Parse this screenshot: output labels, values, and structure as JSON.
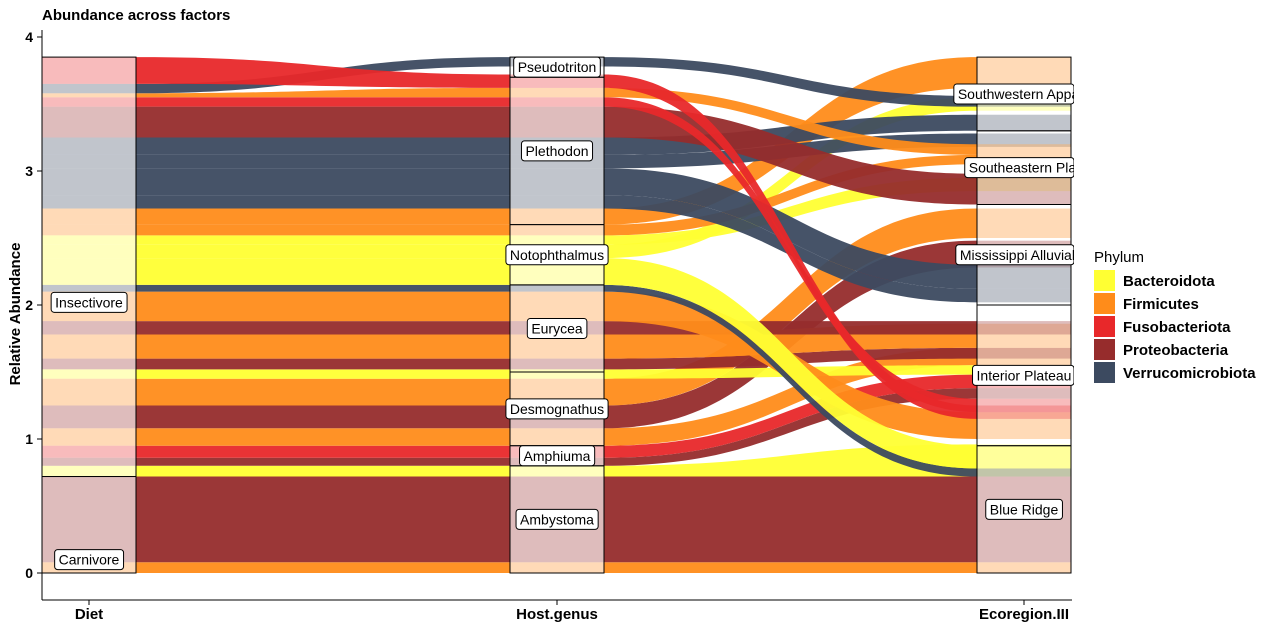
{
  "chart_data": {
    "type": "alluvial",
    "title": "Abundance across factors",
    "ylabel": "Relative Abundance",
    "ylim": [
      0,
      4
    ],
    "yticks": [
      0,
      1,
      2,
      3,
      4
    ],
    "axes": [
      "Diet",
      "Host.genus",
      "Ecoregion.III"
    ],
    "legend": {
      "title": "Phylum",
      "position": "right",
      "items": [
        {
          "name": "Bacteroidota",
          "color": "#FFFF33"
        },
        {
          "name": "Firmicutes",
          "color": "#FF8C1A"
        },
        {
          "name": "Fusobacteriota",
          "color": "#E8282A"
        },
        {
          "name": "Proteobacteria",
          "color": "#962C2C"
        },
        {
          "name": "Verrucomicrobiota",
          "color": "#3C4A60"
        }
      ]
    },
    "strata": {
      "Diet": [
        {
          "label": "Carnivore",
          "ymin": 0.0,
          "ymax": 0.72
        },
        {
          "label": "Insectivore",
          "ymin": 0.72,
          "ymax": 3.85
        }
      ],
      "Host.genus": [
        {
          "label": "Ambystoma",
          "ymin": 0.0,
          "ymax": 0.8
        },
        {
          "label": "Amphiuma",
          "ymin": 0.8,
          "ymax": 0.95
        },
        {
          "label": "Desmognathus",
          "ymin": 0.95,
          "ymax": 1.5
        },
        {
          "label": "Eurycea",
          "ymin": 1.5,
          "ymax": 2.15
        },
        {
          "label": "Notophthalmus",
          "ymin": 2.15,
          "ymax": 2.6
        },
        {
          "label": "Plethodon",
          "ymin": 2.6,
          "ymax": 3.7
        },
        {
          "label": "Pseudotriton",
          "ymin": 3.7,
          "ymax": 3.85
        }
      ],
      "Ecoregion.III": [
        {
          "label": "Blue Ridge",
          "ymin": 0.0,
          "ymax": 0.95
        },
        {
          "label": "Interior Plateau",
          "ymin": 0.95,
          "ymax": 2.0
        },
        {
          "label": "Mississippi Alluvial P",
          "ymin": 2.0,
          "ymax": 2.75
        },
        {
          "label": "Southeastern Plai",
          "ymin": 2.75,
          "ymax": 3.3
        },
        {
          "label": "Southwestern Appala",
          "ymin": 3.3,
          "ymax": 3.85
        }
      ]
    },
    "flows": [
      {
        "phylum": "Firmicutes",
        "diet": [
          0.0,
          0.08
        ],
        "genus": [
          0.0,
          0.08
        ],
        "eco": [
          0.0,
          0.08
        ]
      },
      {
        "phylum": "Proteobacteria",
        "diet": [
          0.08,
          0.72
        ],
        "genus": [
          0.08,
          0.72
        ],
        "eco": [
          0.08,
          0.72
        ]
      },
      {
        "phylum": "Bacteroidota",
        "diet": [
          0.72,
          0.8
        ],
        "genus": [
          0.72,
          0.8
        ],
        "eco": [
          0.72,
          0.96
        ]
      },
      {
        "phylum": "Proteobacteria",
        "diet": [
          0.8,
          0.86
        ],
        "genus": [
          0.8,
          0.86
        ],
        "eco": [
          1.3,
          1.38
        ]
      },
      {
        "phylum": "Fusobacteriota",
        "diet": [
          0.86,
          0.95
        ],
        "genus": [
          0.86,
          0.95
        ],
        "eco": [
          1.38,
          1.48
        ]
      },
      {
        "phylum": "Firmicutes",
        "diet": [
          0.95,
          1.08
        ],
        "genus": [
          0.95,
          1.08
        ],
        "eco": [
          1.55,
          1.68
        ]
      },
      {
        "phylum": "Proteobacteria",
        "diet": [
          1.08,
          1.25
        ],
        "genus": [
          1.08,
          1.25
        ],
        "eco": [
          2.28,
          2.48
        ]
      },
      {
        "phylum": "Firmicutes",
        "diet": [
          1.25,
          1.45
        ],
        "genus": [
          1.25,
          1.45
        ],
        "eco": [
          2.5,
          2.72
        ]
      },
      {
        "phylum": "Bacteroidota",
        "diet": [
          1.45,
          1.52
        ],
        "genus": [
          1.45,
          1.52
        ],
        "eco": [
          1.48,
          1.55
        ]
      },
      {
        "phylum": "Proteobacteria",
        "diet": [
          1.52,
          1.6
        ],
        "genus": [
          1.52,
          1.6
        ],
        "eco": [
          1.6,
          1.68
        ]
      },
      {
        "phylum": "Firmicutes",
        "diet": [
          1.6,
          1.78
        ],
        "genus": [
          1.6,
          1.78
        ],
        "eco": [
          1.68,
          1.86
        ]
      },
      {
        "phylum": "Proteobacteria",
        "diet": [
          1.78,
          1.88
        ],
        "genus": [
          1.78,
          1.88
        ],
        "eco": [
          1.78,
          1.88
        ]
      },
      {
        "phylum": "Firmicutes",
        "diet": [
          1.88,
          2.1
        ],
        "genus": [
          1.88,
          2.1
        ],
        "eco": [
          1.0,
          1.2
        ]
      },
      {
        "phylum": "Verrucomicrobiota",
        "diet": [
          2.1,
          2.15
        ],
        "genus": [
          2.1,
          2.15
        ],
        "eco": [
          0.72,
          0.78
        ]
      },
      {
        "phylum": "Bacteroidota",
        "diet": [
          2.15,
          2.35
        ],
        "genus": [
          2.15,
          2.35
        ],
        "eco": [
          0.78,
          0.95
        ]
      },
      {
        "phylum": "Bacteroidota",
        "diet": [
          2.35,
          2.45
        ],
        "genus": [
          2.35,
          2.45
        ],
        "eco": [
          3.45,
          3.55
        ]
      },
      {
        "phylum": "Bacteroidota",
        "diet": [
          2.45,
          2.52
        ],
        "genus": [
          2.45,
          2.52
        ],
        "eco": [
          2.85,
          2.95
        ]
      },
      {
        "phylum": "Firmicutes",
        "diet": [
          2.52,
          2.6
        ],
        "genus": [
          2.52,
          2.6
        ],
        "eco": [
          3.05,
          3.12
        ]
      },
      {
        "phylum": "Firmicutes",
        "diet": [
          2.6,
          2.72
        ],
        "genus": [
          2.6,
          2.72
        ],
        "eco": [
          3.62,
          3.85
        ]
      },
      {
        "phylum": "Verrucomicrobiota",
        "diet": [
          2.72,
          2.82
        ],
        "genus": [
          2.72,
          2.82
        ],
        "eco": [
          2.02,
          2.12
        ]
      },
      {
        "phylum": "Verrucomicrobiota",
        "diet": [
          2.82,
          3.02
        ],
        "genus": [
          2.82,
          3.02
        ],
        "eco": [
          2.12,
          2.3
        ]
      },
      {
        "phylum": "Verrucomicrobiota",
        "diet": [
          3.02,
          3.12
        ],
        "genus": [
          3.02,
          3.12
        ],
        "eco": [
          3.18,
          3.28
        ]
      },
      {
        "phylum": "Verrucomicrobiota",
        "diet": [
          3.12,
          3.25
        ],
        "genus": [
          3.12,
          3.25
        ],
        "eco": [
          3.3,
          3.42
        ]
      },
      {
        "phylum": "Proteobacteria",
        "diet": [
          3.25,
          3.48
        ],
        "genus": [
          3.25,
          3.48
        ],
        "eco": [
          2.75,
          2.98
        ]
      },
      {
        "phylum": "Fusobacteriota",
        "diet": [
          3.48,
          3.55
        ],
        "genus": [
          3.48,
          3.55
        ],
        "eco": [
          1.2,
          1.3
        ]
      },
      {
        "phylum": "Firmicutes",
        "diet": [
          3.55,
          3.58
        ],
        "genus": [
          3.55,
          3.62
        ],
        "eco": [
          3.12,
          3.2
        ]
      },
      {
        "phylum": "Verrucomicrobiota",
        "diet": [
          3.58,
          3.65
        ],
        "genus": [
          3.78,
          3.85
        ],
        "eco": [
          3.48,
          3.56
        ]
      },
      {
        "phylum": "Fusobacteriota",
        "diet": [
          3.65,
          3.85
        ],
        "genus": [
          3.62,
          3.72
        ],
        "eco": [
          1.15,
          1.25
        ]
      }
    ]
  }
}
